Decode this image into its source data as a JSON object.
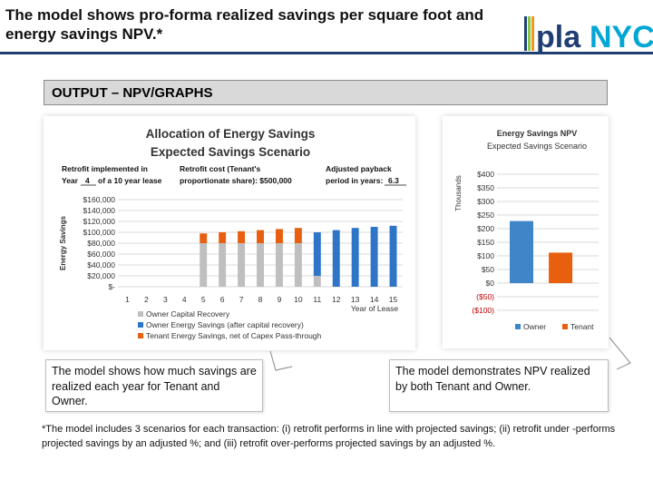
{
  "header": {
    "title": "The model shows pro-forma realized savings per square foot and energy savings NPV.*",
    "logo_text_pla": "pla",
    "logo_text_nyc": "NYC",
    "logo_colors": [
      "#1f3f73",
      "#8dc63f",
      "#f7941d",
      "#00a6d6",
      "#ed1c24"
    ]
  },
  "section": {
    "label": "OUTPUT – NPV/GRAPHS"
  },
  "chart1": {
    "title_line1": "Allocation of Energy Savings",
    "title_line2": "Expected Savings Scenario",
    "retrofit_label_line1": "Retrofit implemented in",
    "retrofit_label_line2_a": "Year",
    "retrofit_year": "4",
    "retrofit_label_line2_b": "of a 10 year lease",
    "cost_label_line1": "Retrofit cost (Tenant's",
    "cost_label_line2": "proportionate share): $500,000",
    "payback_label_line1": "Adjusted payback",
    "payback_label_line2": "period in years:",
    "payback_value": "6.3"
  },
  "chart2": {},
  "callouts": {
    "left": "The model shows how much savings are realized each year for Tenant and Owner.",
    "right": "The model demonstrates NPV realized by both Tenant and Owner."
  },
  "footnote": "*The model includes 3 scenarios for each transaction: (i) retrofit performs in line with projected savings; (ii) retrofit under -performs projected savings by an adjusted %; and (iii) retrofit over-performs projected savings by an adjusted %.",
  "chart_data": [
    {
      "type": "bar",
      "stacked": true,
      "title": "Allocation of Energy Savings Expected Savings Scenario",
      "xlabel": "Year of Lease",
      "ylabel": "Energy Savings",
      "y_tick_labels": [
        "$160,000",
        "$140,000",
        "$120,000",
        "$100,000",
        "$80,000",
        "$60,000",
        "$40,000",
        "$20,000",
        "$-"
      ],
      "ylim": [
        0,
        160000
      ],
      "categories": [
        "1",
        "2",
        "3",
        "4",
        "5",
        "6",
        "7",
        "8",
        "9",
        "10",
        "11",
        "12",
        "13",
        "14",
        "15"
      ],
      "series": [
        {
          "name": "Owner Capital Recovery",
          "color": "#bfbfbf",
          "values": [
            0,
            0,
            0,
            0,
            80000,
            80000,
            80000,
            80000,
            80000,
            80000,
            20000,
            0,
            0,
            0,
            0
          ]
        },
        {
          "name": "Owner Energy Savings (after capital recovery)",
          "color": "#2e75c8",
          "values": [
            0,
            0,
            0,
            0,
            0,
            0,
            0,
            0,
            0,
            0,
            80000,
            104000,
            108000,
            110000,
            112000
          ]
        },
        {
          "name": "Tenant Energy Savings, net of Capex Pass-through",
          "color": "#e8600f",
          "values": [
            0,
            0,
            0,
            0,
            18000,
            20000,
            22000,
            24000,
            26000,
            28000,
            0,
            0,
            0,
            0,
            0
          ]
        }
      ],
      "grid": true,
      "legend": "bottom"
    },
    {
      "type": "bar",
      "title": "Energy Savings NPV Expected Savings Scenario",
      "ylabel": "Thousands",
      "y_tick_labels": [
        "$400",
        "$350",
        "$300",
        "$250",
        "$200",
        "$150",
        "$100",
        "$50",
        "$0",
        "($50)",
        "($100)"
      ],
      "ylim": [
        -100,
        400
      ],
      "categories": [
        "Owner",
        "Tenant"
      ],
      "values": [
        228,
        112
      ],
      "colors": [
        "#3f86c8",
        "#e8600f"
      ],
      "grid": true,
      "legend": "bottom"
    }
  ]
}
